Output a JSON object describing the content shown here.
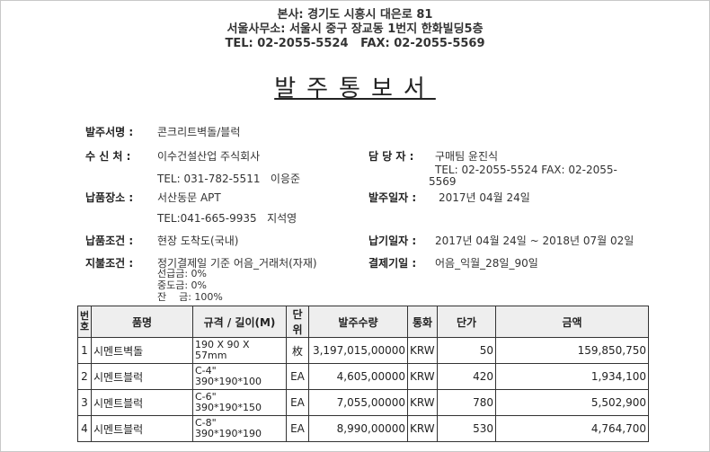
{
  "header": {
    "line1": "본사: 경기도 시흥시 대은로 81",
    "line2": "서울사무소: 서울시 중구 장교동 1번지 한화빌딩5층",
    "line3": "TEL: 02-2055-5524   FAX: 02-2055-5569"
  },
  "title": "발주통보서",
  "fields": {
    "order_name": {
      "label": "발주서명 :",
      "value": "콘크리트벽돌/블럭"
    },
    "recipient": {
      "label": "수 신 처 :",
      "value": "이수건설산업 주식회사",
      "contact": "TEL: 031-782-5511   이응준"
    },
    "delivery_place": {
      "label": "납품장소 :",
      "value": "서산동문 APT",
      "contact": "TEL:041-665-9935   지석영"
    },
    "delivery_terms": {
      "label": "납품조건 :",
      "value": "현장 도착도(국내)"
    },
    "payment_terms": {
      "label": "지불조건 :",
      "value": "정기결제일 기준 어음_거래처(자재)",
      "advance": "선급금: 0%",
      "interim": "중도금: 0%",
      "balance": "잔    금: 100%"
    },
    "manager": {
      "label": "담 당 자 :",
      "value": "구매팀 윤진식",
      "contact1": "TEL: 02-2055-5524 FAX: 02-2055-",
      "contact2": "5569"
    },
    "order_date": {
      "label": "발주일자 :",
      "value": "2017년 04월 24일"
    },
    "due_date": {
      "label": "납기일자 :",
      "value": "2017년 04월 24일 ~ 2018년 07월 02일"
    },
    "payment_day": {
      "label": "결제기일 :",
      "value": "어음_익월_28일_90일"
    }
  },
  "table": {
    "headers": [
      "번호",
      "품명",
      "규격 / 길이(M)",
      "단위",
      "발주수량",
      "통화",
      "단가",
      "금액"
    ],
    "rows": [
      {
        "no": "1",
        "name": "시멘트벽돌",
        "spec1": "190 X 90 X",
        "spec2": "57mm",
        "unit": "枚",
        "qty": "3,197,015,00000",
        "cur": "KRW",
        "price": "50",
        "amount": "159,850,750"
      },
      {
        "no": "2",
        "name": "시멘트블럭",
        "spec1": "C-4\"",
        "spec2": "390*190*100",
        "unit": "EA",
        "qty": "4,605,00000",
        "cur": "KRW",
        "price": "420",
        "amount": "1,934,100"
      },
      {
        "no": "3",
        "name": "시멘트블럭",
        "spec1": "C-6\"",
        "spec2": "390*190*150",
        "unit": "EA",
        "qty": "7,055,00000",
        "cur": "KRW",
        "price": "780",
        "amount": "5,502,900"
      },
      {
        "no": "4",
        "name": "시멘트블럭",
        "spec1": "C-8\"",
        "spec2": "390*190*190",
        "unit": "EA",
        "qty": "8,990,00000",
        "cur": "KRW",
        "price": "530",
        "amount": "4,764,700"
      }
    ]
  }
}
